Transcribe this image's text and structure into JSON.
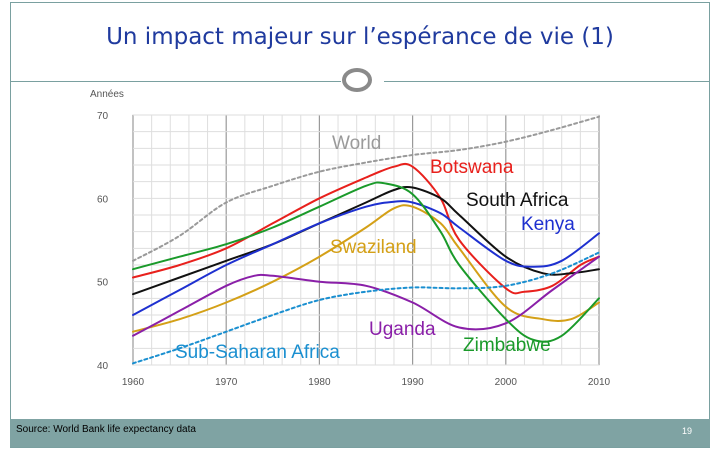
{
  "slide": {
    "title": "Un impact majeur sur l’espérance de vie (1)",
    "source": "Source: World Bank life expectancy data",
    "page_number": "19"
  },
  "chart_data": {
    "type": "line",
    "title": "",
    "ylabel": "Années",
    "xlabel": "",
    "xlim": [
      1960,
      2010
    ],
    "ylim": [
      40,
      70
    ],
    "x_ticks": [
      "1960",
      "1970",
      "1980",
      "1990",
      "2000",
      "2010"
    ],
    "y_ticks": [
      "40",
      "50",
      "60",
      "70"
    ],
    "grid": true,
    "series": [
      {
        "name": "World",
        "color": "#9a9a9a",
        "dashed": true,
        "x": [
          1960,
          1965,
          1970,
          1975,
          1980,
          1985,
          1990,
          1995,
          2000,
          2005,
          2010
        ],
        "y": [
          52.5,
          55.5,
          59.5,
          61.5,
          63.2,
          64.3,
          65.2,
          65.8,
          66.8,
          68.2,
          69.8
        ]
      },
      {
        "name": "Botswana",
        "color": "#e8201c",
        "dashed": false,
        "x": [
          1960,
          1965,
          1970,
          1975,
          1980,
          1985,
          1988,
          1990,
          1993,
          1995,
          2000,
          2002,
          2005,
          2008,
          2010
        ],
        "y": [
          50.5,
          52.0,
          54.0,
          57.0,
          60.0,
          62.5,
          63.8,
          63.8,
          60.0,
          55.0,
          49.2,
          48.8,
          49.5,
          52.0,
          53.0
        ]
      },
      {
        "name": "South Africa",
        "color": "#111111",
        "dashed": false,
        "x": [
          1960,
          1965,
          1970,
          1975,
          1980,
          1985,
          1988,
          1990,
          1993,
          1995,
          2000,
          2004,
          2007,
          2010
        ],
        "y": [
          48.5,
          50.5,
          52.5,
          54.5,
          57.0,
          59.5,
          61.0,
          61.3,
          60.0,
          58.0,
          53.0,
          51.0,
          51.0,
          51.5
        ]
      },
      {
        "name": "Kenya",
        "color": "#1e30d0",
        "dashed": false,
        "x": [
          1960,
          1965,
          1970,
          1975,
          1980,
          1985,
          1988,
          1990,
          1993,
          1995,
          2000,
          2003,
          2006,
          2010
        ],
        "y": [
          46.0,
          49.0,
          52.0,
          54.5,
          57.0,
          59.0,
          59.6,
          59.5,
          58.2,
          56.5,
          52.5,
          51.8,
          52.5,
          55.8
        ]
      },
      {
        "name": "Swaziland",
        "color": "#d4a017",
        "dashed": false,
        "x": [
          1960,
          1965,
          1970,
          1975,
          1980,
          1985,
          1988,
          1990,
          1993,
          1995,
          2000,
          2004,
          2007,
          2010
        ],
        "y": [
          44.0,
          45.5,
          47.5,
          50.0,
          53.0,
          56.5,
          58.8,
          59.0,
          57.0,
          54.0,
          47.0,
          45.5,
          45.5,
          47.5
        ]
      },
      {
        "name": "Uganda",
        "color": "#8a1fa8",
        "dashed": false,
        "x": [
          1960,
          1965,
          1970,
          1973,
          1975,
          1980,
          1985,
          1990,
          1995,
          2000,
          2005,
          2010
        ],
        "y": [
          43.5,
          46.5,
          49.5,
          50.7,
          50.7,
          50.0,
          49.5,
          47.5,
          44.5,
          45.0,
          49.0,
          53.0
        ]
      },
      {
        "name": "Zimbabwe",
        "color": "#1a9a2a",
        "dashed": false,
        "x": [
          1960,
          1965,
          1970,
          1975,
          1980,
          1985,
          1987,
          1990,
          1993,
          1995,
          2000,
          2003,
          2006,
          2010
        ],
        "y": [
          51.5,
          53.0,
          54.5,
          56.5,
          59.0,
          61.5,
          61.8,
          60.5,
          56.0,
          52.0,
          45.5,
          43.0,
          43.5,
          48.0
        ]
      },
      {
        "name": "Sub-Saharan Africa",
        "color": "#1a8fd0",
        "dashed": true,
        "x": [
          1960,
          1965,
          1970,
          1975,
          1980,
          1985,
          1990,
          1995,
          2000,
          2005,
          2010
        ],
        "y": [
          40.2,
          42.0,
          44.0,
          46.0,
          47.8,
          48.8,
          49.3,
          49.2,
          49.5,
          51.0,
          53.5
        ]
      }
    ]
  }
}
